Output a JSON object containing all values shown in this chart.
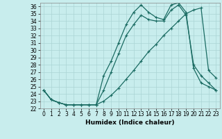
{
  "xlabel": "Humidex (Indice chaleur)",
  "bg_color": "#c8eded",
  "line_color": "#1a6b62",
  "markersize": 3,
  "linewidth": 0.9,
  "xlim": [
    -0.5,
    23.5
  ],
  "ylim": [
    22,
    36.5
  ],
  "yticks": [
    22,
    23,
    24,
    25,
    26,
    27,
    28,
    29,
    30,
    31,
    32,
    33,
    34,
    35,
    36
  ],
  "xticks": [
    0,
    1,
    2,
    3,
    4,
    5,
    6,
    7,
    8,
    9,
    10,
    11,
    12,
    13,
    14,
    15,
    16,
    17,
    18,
    19,
    20,
    21,
    22,
    23
  ],
  "line1_x": [
    0,
    1,
    2,
    3,
    4,
    5,
    6,
    7,
    8,
    9,
    10,
    11,
    12,
    13,
    14,
    15,
    16,
    17,
    18,
    19,
    20,
    21,
    22,
    23
  ],
  "line1_y": [
    24.5,
    23.2,
    22.8,
    22.5,
    22.5,
    22.5,
    22.5,
    22.5,
    24.5,
    27.0,
    29.5,
    32.0,
    33.5,
    34.8,
    34.2,
    34.0,
    34.0,
    35.5,
    36.2,
    34.8,
    28.0,
    26.5,
    25.5,
    24.5
  ],
  "line2_x": [
    0,
    1,
    2,
    3,
    4,
    5,
    6,
    7,
    8,
    9,
    10,
    11,
    12,
    13,
    14,
    15,
    16,
    17,
    18,
    19,
    20,
    21,
    22,
    23
  ],
  "line2_y": [
    24.5,
    23.2,
    22.8,
    22.5,
    22.5,
    22.5,
    22.5,
    22.5,
    26.5,
    28.5,
    31.0,
    33.5,
    35.2,
    36.2,
    35.2,
    34.5,
    34.2,
    36.2,
    36.5,
    35.2,
    27.5,
    25.5,
    25.0,
    24.5
  ],
  "line3_x": [
    0,
    1,
    2,
    3,
    4,
    5,
    6,
    7,
    8,
    9,
    10,
    11,
    12,
    13,
    14,
    15,
    16,
    17,
    18,
    19,
    20,
    21,
    22,
    23
  ],
  "line3_y": [
    24.5,
    23.2,
    22.8,
    22.5,
    22.5,
    22.5,
    22.5,
    22.5,
    23.0,
    23.8,
    24.8,
    26.0,
    27.2,
    28.5,
    29.8,
    30.8,
    32.0,
    33.0,
    34.0,
    35.0,
    35.5,
    35.8,
    27.2,
    26.2
  ],
  "grid_color": "#aad4d4",
  "tick_fontsize": 5.5,
  "axis_fontsize": 6.5
}
